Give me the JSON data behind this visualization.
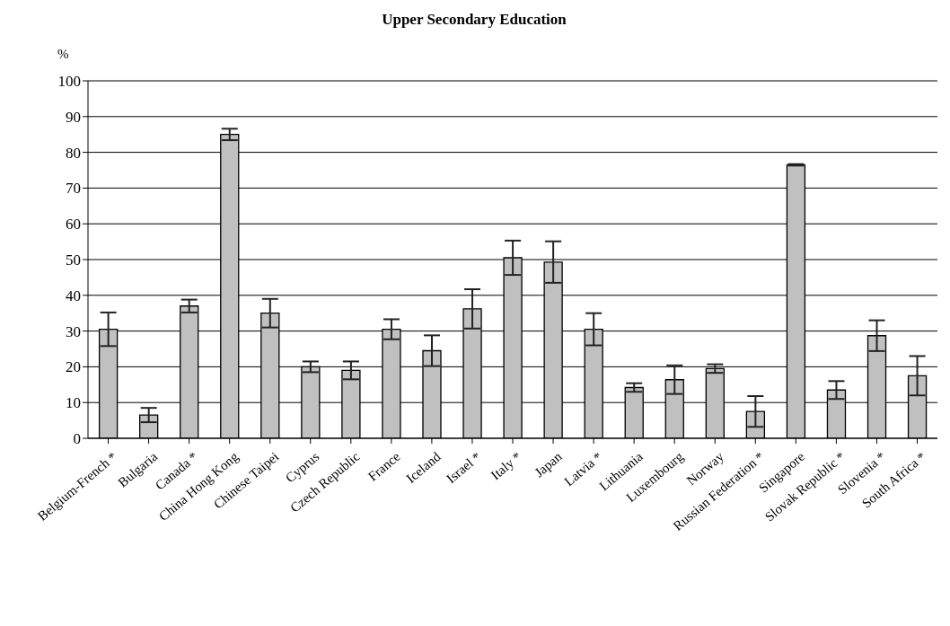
{
  "chart_data": {
    "type": "bar",
    "title": "Upper Secondary Education",
    "ylabel": "%",
    "categories": [
      "Belgium-French *",
      "Bulgaria",
      "Canada *",
      "China Hong Kong",
      "Chinese Taipei",
      "Cyprus",
      "Czech Republic",
      "France",
      "Iceland",
      "Israel *",
      "Italy *",
      "Japan",
      "Latvia *",
      "Lithuania",
      "Luxembourg",
      "Norway",
      "Russian Federation *",
      "Singapore",
      "Slovak Republic *",
      "Slovenia *",
      "South Africa *"
    ],
    "values": [
      30.5,
      6.5,
      37,
      85,
      35,
      20,
      19,
      30.5,
      24.5,
      36.2,
      50.5,
      49.3,
      30.5,
      14.2,
      16.4,
      19.5,
      7.5,
      76.5,
      13.5,
      28.7,
      17.5
    ],
    "errors": [
      4.7,
      2,
      1.8,
      1.6,
      4,
      1.5,
      2.5,
      2.8,
      4.3,
      5.5,
      4.8,
      5.8,
      4.5,
      1.2,
      4,
      1.2,
      4.3,
      0.2,
      2.5,
      4.3,
      5.5
    ],
    "color": "#c0c0c0",
    "ylim": [
      0,
      100
    ],
    "yticks": [
      0,
      10,
      20,
      30,
      40,
      50,
      60,
      70,
      80,
      90,
      100
    ],
    "grid": "y"
  }
}
